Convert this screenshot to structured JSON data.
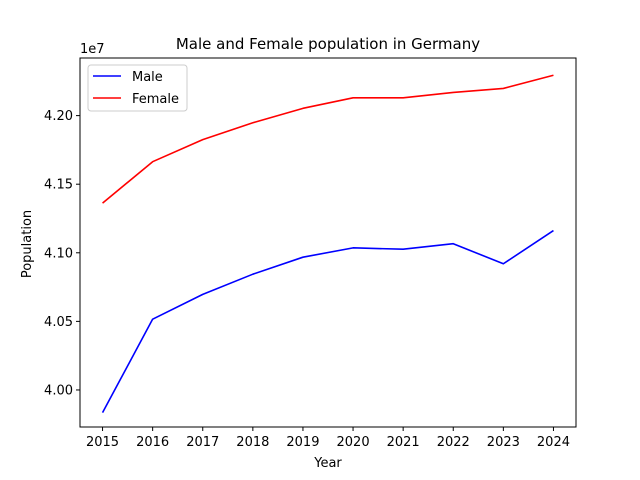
{
  "chart_data": {
    "type": "line",
    "title": "Male and Female population in Germany",
    "xlabel": "Year",
    "ylabel": "Population",
    "offset_label": "1e7",
    "x": [
      2015,
      2016,
      2017,
      2018,
      2019,
      2020,
      2021,
      2022,
      2023,
      2024
    ],
    "x_tick_labels": [
      "2015",
      "2016",
      "2017",
      "2018",
      "2019",
      "2020",
      "2021",
      "2022",
      "2023",
      "2024"
    ],
    "y_tick_values": [
      40000000,
      40500000,
      41000000,
      41500000,
      42000000
    ],
    "y_tick_labels": [
      "4.00",
      "4.05",
      "4.10",
      "4.15",
      "4.20"
    ],
    "ylim": [
      39730000,
      42420000
    ],
    "xlim": [
      2014.55,
      2024.45
    ],
    "grid": false,
    "legend_position": "upper-left",
    "series": [
      {
        "name": "Male",
        "color": "#0000ff",
        "values": [
          39835000,
          40516000,
          40697000,
          40844000,
          40968000,
          41036000,
          41026000,
          41066000,
          40920000,
          41162000
        ]
      },
      {
        "name": "Female",
        "color": "#ff0000",
        "values": [
          41362000,
          41664000,
          41825000,
          41948000,
          42053000,
          42130000,
          42130000,
          42169000,
          42198000,
          42294000
        ]
      }
    ]
  }
}
